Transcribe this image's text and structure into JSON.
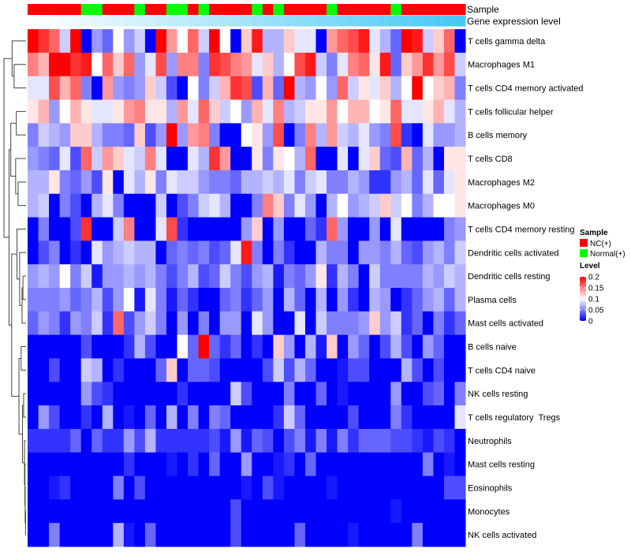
{
  "chart_data": {
    "type": "heatmap",
    "annotations": {
      "sample_label": "Sample",
      "gene_label": "Gene expression level",
      "sample": [
        "NC(+)",
        "NC(+)",
        "NC(+)",
        "NC(+)",
        "NC(+)",
        "Normal(+)",
        "Normal(+)",
        "NC(+)",
        "NC(+)",
        "NC(+)",
        "Normal(+)",
        "NC(+)",
        "NC(+)",
        "Normal(+)",
        "Normal(+)",
        "NC(+)",
        "Normal(+)",
        "NC(+)",
        "NC(+)",
        "NC(+)",
        "NC(+)",
        "Normal(+)",
        "NC(+)",
        "Normal(+)",
        "NC(+)",
        "NC(+)",
        "NC(+)",
        "NC(+)",
        "Normal(+)",
        "NC(+)",
        "NC(+)",
        "NC(+)",
        "NC(+)",
        "NC(+)",
        "Normal(+)",
        "NC(+)",
        "NC(+)",
        "NC(+)",
        "NC(+)",
        "NC(+)",
        "NC(+)"
      ],
      "gene_expression_level": [
        0,
        0.025,
        0.05,
        0.075,
        0.1,
        0.125,
        0.15,
        0.175,
        0.2,
        0.225,
        0.25,
        0.275,
        0.3,
        0.325,
        0.35,
        0.375,
        0.4,
        0.425,
        0.45,
        0.475,
        0.5,
        0.525,
        0.55,
        0.575,
        0.6,
        0.625,
        0.65,
        0.675,
        0.7,
        0.725,
        0.75,
        0.775,
        0.8,
        0.825,
        0.85,
        0.875,
        0.9,
        0.925,
        0.95,
        0.975,
        1
      ]
    },
    "rows": [
      "T cells gamma delta",
      "Macrophages M1",
      "T cells CD4 memory activated",
      "T cells follicular helper",
      "B cells memory",
      "T cells CD8",
      "Macrophages M2",
      "Macrophages M0",
      "T cells CD4 memory resting",
      "Dendritic cells activated",
      "Dendritic cells resting",
      "Plasma cells",
      "Mast cells activated",
      "B cells naive",
      "T cells CD4 naive",
      "NK cells resting",
      "T cells regulatory  Tregs",
      "Neutrophils",
      "Mast cells resting",
      "Eosinophils",
      "Monocytes",
      "NK cells activated"
    ],
    "values": [
      [
        0.2,
        0.18,
        0.16,
        0.08,
        0.2,
        0,
        0.06,
        0.04,
        0.1,
        0.06,
        0.08,
        0,
        0.2,
        0.14,
        0.1,
        0.16,
        0.08,
        0.2,
        0.1,
        0,
        0.12,
        0.19,
        0.07,
        0.07,
        0.12,
        0.09,
        0.09,
        0,
        0.14,
        0.16,
        0.17,
        0.19,
        0.09,
        0.07,
        0.04,
        0.2,
        0.19,
        0.08,
        0.12,
        0.16,
        0
      ],
      [
        0.15,
        0.13,
        0.2,
        0.2,
        0.18,
        0.19,
        0.1,
        0.16,
        0.12,
        0.16,
        0.06,
        0.09,
        0.17,
        0.06,
        0.15,
        0.15,
        0.05,
        0.18,
        0.17,
        0.15,
        0.14,
        0.09,
        0.12,
        0.07,
        0.1,
        0.17,
        0.19,
        0.08,
        0.05,
        0.09,
        0.15,
        0.16,
        0.11,
        0.19,
        0.04,
        0.12,
        0.14,
        0.18,
        0.14,
        0.17,
        0.08
      ],
      [
        0.09,
        0.09,
        0.17,
        0.13,
        0.16,
        0.05,
        0,
        0.14,
        0.06,
        0.05,
        0.06,
        0.12,
        0.08,
        0.03,
        0,
        0.1,
        0.05,
        0.08,
        0.13,
        0.18,
        0.17,
        0.03,
        0.13,
        0.04,
        0.2,
        0.07,
        0.06,
        0.1,
        0.06,
        0.16,
        0.08,
        0.11,
        0.09,
        0.12,
        0.07,
        0.1,
        0.2,
        0.1,
        0.12,
        0.13,
        0.05
      ],
      [
        0.11,
        0.13,
        0.06,
        0.1,
        0.13,
        0.11,
        0.09,
        0.09,
        0.11,
        0.14,
        0.15,
        0.11,
        0.11,
        0.07,
        0.14,
        0.09,
        0.16,
        0.12,
        0.08,
        0.1,
        0.06,
        0.13,
        0.09,
        0.15,
        0.07,
        0.08,
        0.11,
        0.11,
        0.14,
        0.1,
        0.13,
        0.13,
        0.1,
        0.11,
        0.16,
        0.09,
        0.09,
        0.11,
        0.13,
        0.09,
        0.07
      ],
      [
        0.05,
        0.08,
        0.07,
        0.06,
        0.12,
        0.12,
        0.07,
        0.05,
        0.05,
        0.04,
        0.12,
        0.03,
        0.06,
        0.2,
        0.06,
        0.14,
        0.15,
        0.05,
        0,
        0,
        0.1,
        0.11,
        0.06,
        0.17,
        0,
        0.05,
        0.15,
        0.07,
        0.14,
        0.08,
        0.07,
        0.09,
        0.06,
        0.05,
        0.17,
        0.02,
        0,
        0.09,
        0.06,
        0.06,
        0.07
      ],
      [
        0.06,
        0.05,
        0.04,
        0.09,
        0.03,
        0.16,
        0.08,
        0.14,
        0.12,
        0.09,
        0.08,
        0.15,
        0.09,
        0,
        0,
        0.09,
        0.07,
        0.18,
        0.14,
        0,
        0,
        0.11,
        0.05,
        0.11,
        0.1,
        0.07,
        0.16,
        0,
        0,
        0.09,
        0,
        0.09,
        0.12,
        0.04,
        0.03,
        0.13,
        0.04,
        0.07,
        0,
        0.11,
        0.11
      ],
      [
        0.07,
        0.07,
        0.11,
        0.05,
        0.04,
        0.06,
        0.03,
        0.11,
        0,
        0.09,
        0.07,
        0.11,
        0.05,
        0.09,
        0.08,
        0.08,
        0.06,
        0.05,
        0.05,
        0.04,
        0.07,
        0.07,
        0.08,
        0.07,
        0.09,
        0.05,
        0.08,
        0.09,
        0.05,
        0.05,
        0.07,
        0.06,
        0.02,
        0.02,
        0.06,
        0.07,
        0.04,
        0.09,
        0.04,
        0.09,
        0.11
      ],
      [
        0.07,
        0.08,
        0,
        0.05,
        0.03,
        0,
        0.07,
        0.09,
        0.05,
        0,
        0,
        0,
        0.08,
        0,
        0.03,
        0.05,
        0.08,
        0.09,
        0.07,
        0,
        0,
        0.05,
        0.15,
        0.12,
        0.05,
        0.09,
        0.06,
        0,
        0.07,
        0.1,
        0.06,
        0.07,
        0.08,
        0.12,
        0.08,
        0.1,
        0.05,
        0.07,
        0.1,
        0.1,
        0.11
      ],
      [
        0,
        0.05,
        0,
        0,
        0.03,
        0.18,
        0,
        0,
        0.08,
        0.15,
        0,
        0,
        0.09,
        0.17,
        0.02,
        0,
        0,
        0,
        0,
        0,
        0.06,
        0.12,
        0,
        0.06,
        0,
        0,
        0.04,
        0.02,
        0.16,
        0.06,
        0,
        0,
        0.06,
        0,
        0.09,
        0,
        0,
        0,
        0,
        0.05,
        0.06
      ],
      [
        0,
        0.03,
        0.05,
        0,
        0.02,
        0,
        0.09,
        0.06,
        0.07,
        0.08,
        0.07,
        0.07,
        0,
        0.04,
        0.05,
        0.04,
        0.05,
        0.03,
        0.04,
        0.09,
        0.19,
        0.05,
        0,
        0.05,
        0.02,
        0,
        0,
        0.07,
        0.05,
        0.05,
        0,
        0.06,
        0.06,
        0.05,
        0.07,
        0.04,
        0.03,
        0.06,
        0.07,
        0.05,
        0.08
      ],
      [
        0.06,
        0.07,
        0.06,
        0.1,
        0.05,
        0.08,
        0.01,
        0.06,
        0.06,
        0.07,
        0.06,
        0.07,
        0.05,
        0.03,
        0.05,
        0.07,
        0.03,
        0.04,
        0.08,
        0.05,
        0.03,
        0.06,
        0.07,
        0.01,
        0.05,
        0.04,
        0.06,
        0.11,
        0.02,
        0.07,
        0.05,
        0,
        0.08,
        0.05,
        0.05,
        0.05,
        0.05,
        0.07,
        0.06,
        0.08,
        0.07
      ],
      [
        0.05,
        0.05,
        0.05,
        0.06,
        0.04,
        0.05,
        0.07,
        0.03,
        0.06,
        0.1,
        0.01,
        0.09,
        0.05,
        0.01,
        0.04,
        0.02,
        0,
        0,
        0.04,
        0.05,
        0.02,
        0.04,
        0.06,
        0,
        0.07,
        0.04,
        0,
        0.07,
        0,
        0.06,
        0.02,
        0,
        0.07,
        0.06,
        0,
        0.02,
        0.04,
        0.06,
        0.07,
        0.04,
        0.07
      ],
      [
        0.04,
        0.06,
        0.05,
        0.02,
        0.06,
        0.05,
        0.08,
        0.02,
        0.16,
        0.03,
        0.06,
        0.08,
        0.05,
        0,
        0.06,
        0,
        0.05,
        0,
        0.06,
        0.06,
        0,
        0.09,
        0.06,
        0,
        0,
        0.09,
        0,
        0.08,
        0.05,
        0.05,
        0.05,
        0.06,
        0.12,
        0.06,
        0.08,
        0.02,
        0.04,
        0,
        0.05,
        0.02,
        0.04
      ],
      [
        0,
        0,
        0,
        0,
        0,
        0.03,
        0,
        0,
        0,
        0.02,
        0.07,
        0.03,
        0,
        0,
        0.1,
        0.04,
        0.2,
        0.04,
        0.02,
        0.04,
        0,
        0.02,
        0,
        0.12,
        0.06,
        0,
        0.07,
        0.01,
        0.12,
        0,
        0.06,
        0.04,
        0,
        0.03,
        0.07,
        0.03,
        0,
        0.06,
        0.04,
        0,
        0
      ],
      [
        0,
        0,
        0.03,
        0,
        0,
        0.08,
        0.07,
        0,
        0.02,
        0,
        0,
        0,
        0.04,
        0.12,
        0,
        0.04,
        0.04,
        0.03,
        0,
        0,
        0,
        0,
        0.03,
        0.08,
        0.03,
        0.07,
        0.04,
        0,
        0,
        0.01,
        0.03,
        0.03,
        0,
        0,
        0,
        0.07,
        0.03,
        0,
        0.03,
        0,
        0
      ],
      [
        0,
        0,
        0,
        0,
        0,
        0.06,
        0.03,
        0.02,
        0,
        0,
        0,
        0,
        0,
        0,
        0.02,
        0,
        0,
        0,
        0,
        0.08,
        0.03,
        0,
        0,
        0,
        0.05,
        0,
        0,
        0.04,
        0,
        0.01,
        0,
        0,
        0,
        0,
        0.06,
        0,
        0,
        0.03,
        0.04,
        0,
        0.05
      ],
      [
        0,
        0.06,
        0.03,
        0,
        0,
        0.02,
        0,
        0.07,
        0,
        0.01,
        0,
        0.04,
        0,
        0.07,
        0,
        0.05,
        0,
        0.05,
        0.04,
        0,
        0,
        0,
        0,
        0.02,
        0.08,
        0.04,
        0,
        0,
        0,
        0,
        0.03,
        0,
        0,
        0,
        0.05,
        0.02,
        0,
        0,
        0,
        0,
        0.09
      ],
      [
        0.02,
        0.02,
        0.02,
        0.02,
        0.04,
        0,
        0.04,
        0.02,
        0.02,
        0.06,
        0.03,
        0.07,
        0.02,
        0.02,
        0.02,
        0.02,
        0.02,
        0.03,
        0.01,
        0.06,
        0.01,
        0.04,
        0.03,
        0,
        0.03,
        0.05,
        0.01,
        0.05,
        0.01,
        0.05,
        0.02,
        0.04,
        0.04,
        0.04,
        0.03,
        0.03,
        0.02,
        0.01,
        0.03,
        0.02,
        0
      ],
      [
        0,
        0,
        0,
        0,
        0,
        0,
        0,
        0,
        0,
        0.02,
        0,
        0,
        0,
        0.01,
        0,
        0.02,
        0,
        0.04,
        0,
        0,
        0.06,
        0,
        0,
        0.01,
        0.02,
        0,
        0.04,
        0,
        0,
        0,
        0,
        0,
        0,
        0,
        0,
        0,
        0,
        0.05,
        0,
        0.01,
        0
      ],
      [
        0,
        0,
        0.01,
        0.02,
        0,
        0,
        0,
        0,
        0.05,
        0,
        0.03,
        0,
        0,
        0,
        0,
        0,
        0,
        0,
        0,
        0,
        0.01,
        0,
        0.03,
        0.01,
        0,
        0,
        0,
        0,
        0.01,
        0,
        0,
        0,
        0,
        0,
        0,
        0,
        0,
        0,
        0,
        0.03,
        0.03
      ],
      [
        0,
        0,
        0,
        0,
        0,
        0,
        0,
        0,
        0,
        0,
        0,
        0,
        0,
        0,
        0,
        0,
        0,
        0,
        0,
        0.03,
        0,
        0,
        0,
        0,
        0,
        0,
        0,
        0,
        0,
        0,
        0,
        0,
        0,
        0,
        0.01,
        0,
        0,
        0,
        0,
        0,
        0
      ],
      [
        0,
        0,
        0.05,
        0,
        0,
        0,
        0,
        0,
        0.07,
        0.01,
        0,
        0.04,
        0,
        0,
        0,
        0,
        0,
        0,
        0,
        0.03,
        0,
        0,
        0,
        0,
        0,
        0.04,
        0,
        0,
        0,
        0,
        0.01,
        0,
        0,
        0,
        0,
        0,
        0.05,
        0,
        0,
        0,
        0
      ]
    ],
    "row_dendrogram": [
      [
        1,
        2,
        0.54
      ],
      [
        0,
        -1,
        0.63
      ],
      [
        3,
        4,
        0.44
      ],
      [
        6,
        7,
        0.36
      ],
      [
        5,
        -4,
        0.47
      ],
      [
        -3,
        -5,
        0.69
      ],
      [
        10,
        11,
        0.14
      ],
      [
        -7,
        12,
        0.18
      ],
      [
        9,
        -8,
        0.29
      ],
      [
        8,
        -9,
        0.41
      ],
      [
        13,
        14,
        0.22
      ],
      [
        15,
        16,
        0.11
      ],
      [
        20,
        21,
        0.02
      ],
      [
        19,
        -13,
        0.04
      ],
      [
        18,
        -14,
        0.05
      ],
      [
        17,
        -15,
        0.07
      ],
      [
        -12,
        -16,
        0.16
      ],
      [
        -11,
        -17,
        0.32
      ],
      [
        -10,
        -18,
        0.65
      ],
      [
        -6,
        -19,
        0.77
      ],
      [
        -2,
        -20,
        1.0
      ]
    ],
    "legend": {
      "sample_title": "Sample",
      "sample_items": [
        {
          "label": "NC(+)",
          "color": "#ff0000"
        },
        {
          "label": "Normal(+)",
          "color": "#00ff00"
        }
      ],
      "level_title": "Level",
      "level_ticks": [
        "0.2",
        "0.15",
        "0.1",
        "0.05",
        "0"
      ],
      "level_tick_values": [
        0.2,
        0.15,
        0.1,
        0.05,
        0
      ],
      "scale": {
        "min": 0,
        "mid": 0.1,
        "max": 0.2,
        "low_color": "#0000ff",
        "mid_color": "#ffffff",
        "high_color": "#ff0000"
      },
      "gene_colors": {
        "low": "#ffffff",
        "high": "#48c8f6"
      },
      "placement": "right"
    }
  }
}
